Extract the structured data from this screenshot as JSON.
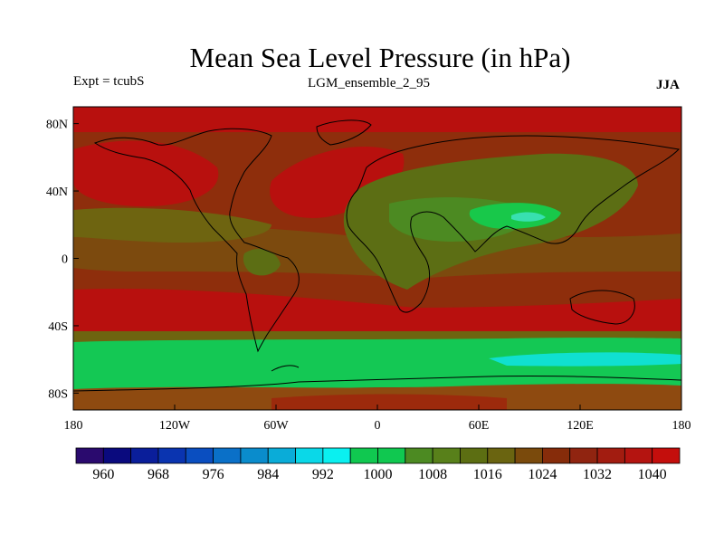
{
  "header": {
    "title": "Mean Sea Level Pressure (in hPa)",
    "experiment": "Expt = tcubS",
    "ensemble": "LGM_ensemble_2_95",
    "season": "JJA"
  },
  "map": {
    "lat_range": [
      -90,
      90
    ],
    "lon_range": [
      -180,
      180
    ],
    "lat_ticks": [
      {
        "value": 80,
        "label": "80N"
      },
      {
        "value": 40,
        "label": "40N"
      },
      {
        "value": 0,
        "label": "0"
      },
      {
        "value": -40,
        "label": "40S"
      },
      {
        "value": -80,
        "label": "80S"
      }
    ],
    "lon_ticks": [
      {
        "value": -180,
        "label": "180"
      },
      {
        "value": -120,
        "label": "120W"
      },
      {
        "value": -60,
        "label": "60W"
      },
      {
        "value": 0,
        "label": "0"
      },
      {
        "value": 60,
        "label": "60E"
      },
      {
        "value": 120,
        "label": "120E"
      },
      {
        "value": 180,
        "label": "180"
      }
    ]
  },
  "colorbar": {
    "colors": [
      "#2a0a6e",
      "#0a0a7e",
      "#0a1e9a",
      "#0a34b0",
      "#0a4ec0",
      "#0a70c8",
      "#0a8ccc",
      "#0aacd8",
      "#0ad8e8",
      "#0af0f0",
      "#10c850",
      "#10c850",
      "#4c8a22",
      "#58801a",
      "#5c6e12",
      "#6a6410",
      "#7a4a0c",
      "#862c0a",
      "#902410",
      "#a21c10",
      "#b41410",
      "#c40e0c"
    ],
    "labels": [
      "960",
      "968",
      "976",
      "984",
      "992",
      "1000",
      "1008",
      "1016",
      "1024",
      "1032",
      "1040"
    ]
  }
}
